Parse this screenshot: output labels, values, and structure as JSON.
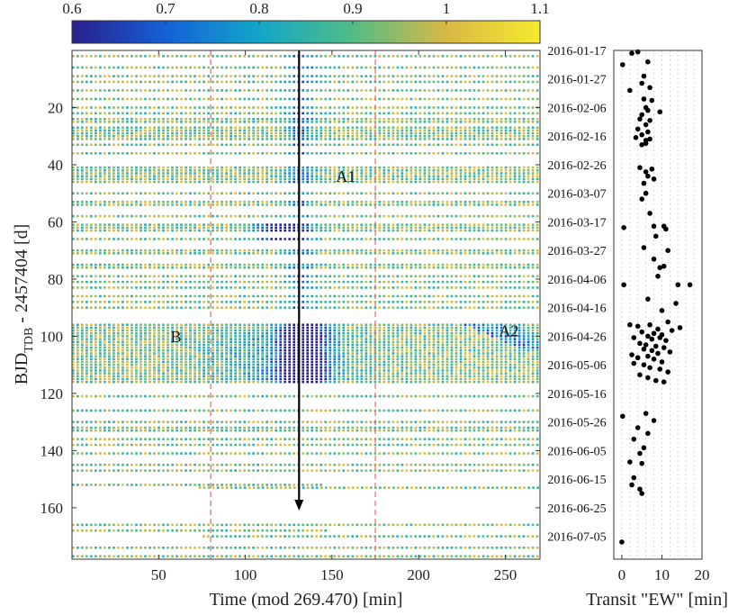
{
  "chart_data": [
    {
      "type": "heatmap",
      "xlabel": "Time (mod 269.470) [min]",
      "ylabel_main": "BJD",
      "ylabel_sub": "TDB",
      "ylabel_rest": " - 2457404 [d]",
      "xlim": [
        0,
        270
      ],
      "ylim": [
        178,
        0
      ],
      "x_ticks": [
        50,
        100,
        150,
        200,
        250
      ],
      "y_ticks": [
        20,
        40,
        60,
        80,
        100,
        120,
        140,
        160
      ],
      "colorbar": {
        "ticks": [
          "0.6",
          "0.7",
          "0.8",
          "0.9",
          "1",
          "1.1"
        ],
        "range": [
          0.6,
          1.1
        ],
        "stops": [
          "#2a1f8a",
          "#1560d8",
          "#12a6c9",
          "#52bc86",
          "#d8b845",
          "#f6e930"
        ]
      },
      "period_markers_min": [
        80,
        175
      ],
      "arrow": {
        "x": 131,
        "y_from": 0,
        "y_to": 161
      },
      "annotations": [
        {
          "text": "A1",
          "x": 158,
          "y": 46
        },
        {
          "text": "B",
          "x": 60,
          "y": 102
        },
        {
          "text": "A2",
          "x": 252,
          "y": 100
        }
      ],
      "date_labels": [
        "2016-01-17",
        "2016-01-27",
        "2016-02-06",
        "2016-02-16",
        "2016-02-26",
        "2016-03-07",
        "2016-03-17",
        "2016-03-27",
        "2016-04-06",
        "2016-04-16",
        "2016-04-26",
        "2016-05-06",
        "2016-05-16",
        "2016-05-26",
        "2016-06-05",
        "2016-06-15",
        "2016-06-25",
        "2016-07-05"
      ],
      "date_days": [
        0,
        10,
        20,
        30,
        40,
        50,
        60,
        70,
        80,
        90,
        100,
        110,
        120,
        130,
        140,
        150,
        160,
        170
      ],
      "observation_days": [
        2,
        6,
        9,
        11,
        14,
        17,
        20,
        22,
        24,
        25,
        27,
        28,
        29,
        30,
        31,
        33,
        36,
        41,
        42,
        43,
        44,
        45,
        46,
        50,
        53,
        54,
        58,
        61,
        62,
        63,
        66,
        70,
        71,
        75,
        76,
        79,
        81,
        83,
        86,
        88,
        90,
        96,
        97,
        98,
        99,
        100,
        101,
        102,
        103,
        104,
        105,
        106,
        107,
        108,
        109,
        110,
        111,
        112,
        113,
        114,
        115,
        116,
        121,
        126,
        130,
        132,
        133,
        136,
        138,
        141,
        145,
        147,
        152,
        153,
        166,
        168,
        170,
        174,
        177
      ],
      "dips": [
        {
          "x_center": 131,
          "half_width": 8,
          "y_from": 0,
          "y_to": 120,
          "depth": 0.22
        },
        {
          "x_center": 118,
          "half_width": 12,
          "y_from": 60,
          "y_to": 66,
          "depth": 0.35
        },
        {
          "x_center": 133,
          "half_width": 14,
          "y_from": 96,
          "y_to": 116,
          "depth": 0.35
        },
        {
          "x_center": 120,
          "half_width": 40,
          "y_from": 98,
          "y_to": 115,
          "depth": 0.12
        }
      ]
    },
    {
      "type": "scatter",
      "xlabel": "Transit \"EW\" [min]",
      "xlim": [
        -2,
        20
      ],
      "x_ticks": [
        0,
        10,
        20
      ],
      "points": [
        [
          2.5,
          1.0
        ],
        [
          4.0,
          0.5
        ],
        [
          0.2,
          5.0
        ],
        [
          6.5,
          4.0
        ],
        [
          5.5,
          9.0
        ],
        [
          5.0,
          11.5
        ],
        [
          7.0,
          13.0
        ],
        [
          2.0,
          14.0
        ],
        [
          5.5,
          17.0
        ],
        [
          7.5,
          17.5
        ],
        [
          6.0,
          20.0
        ],
        [
          6.5,
          21.0
        ],
        [
          9.5,
          21.5
        ],
        [
          5.0,
          22.5
        ],
        [
          4.5,
          24.0
        ],
        [
          7.0,
          24.5
        ],
        [
          6.0,
          26.0
        ],
        [
          4.0,
          27.5
        ],
        [
          5.0,
          29.5
        ],
        [
          6.5,
          28.5
        ],
        [
          3.5,
          30.5
        ],
        [
          6.0,
          31.5
        ],
        [
          7.0,
          31.0
        ],
        [
          5.0,
          33.0
        ],
        [
          6.0,
          32.5
        ],
        [
          4.5,
          41.0
        ],
        [
          6.0,
          42.5
        ],
        [
          7.5,
          41.5
        ],
        [
          8.0,
          45.0
        ],
        [
          5.5,
          46.5
        ],
        [
          6.5,
          44.0
        ],
        [
          6.0,
          50.0
        ],
        [
          5.0,
          52.0
        ],
        [
          7.0,
          57.0
        ],
        [
          0.5,
          62.0
        ],
        [
          8.0,
          61.5
        ],
        [
          10.5,
          61.5
        ],
        [
          11.0,
          62.5
        ],
        [
          8.5,
          65.0
        ],
        [
          5.5,
          69.0
        ],
        [
          8.0,
          73.0
        ],
        [
          11.5,
          70.0
        ],
        [
          9.5,
          76.0
        ],
        [
          10.5,
          75.5
        ],
        [
          9.0,
          79.0
        ],
        [
          0.5,
          82.0
        ],
        [
          14.0,
          82.0
        ],
        [
          17.0,
          82.0
        ],
        [
          6.5,
          87.0
        ],
        [
          13.5,
          88.5
        ],
        [
          10.0,
          91.0
        ],
        [
          2.0,
          96.0
        ],
        [
          4.0,
          96.5
        ],
        [
          7.0,
          96.0
        ],
        [
          9.0,
          97.5
        ],
        [
          11.5,
          95.0
        ],
        [
          5.0,
          98.5
        ],
        [
          8.0,
          99.0
        ],
        [
          10.0,
          99.5
        ],
        [
          12.5,
          98.0
        ],
        [
          3.0,
          100.5
        ],
        [
          6.5,
          100.0
        ],
        [
          7.5,
          101.0
        ],
        [
          9.5,
          100.5
        ],
        [
          11.0,
          101.5
        ],
        [
          14.5,
          97.0
        ],
        [
          4.5,
          102.5
        ],
        [
          6.0,
          103.0
        ],
        [
          8.5,
          103.5
        ],
        [
          10.5,
          104.0
        ],
        [
          5.5,
          104.5
        ],
        [
          7.5,
          105.0
        ],
        [
          9.0,
          106.0
        ],
        [
          12.0,
          105.5
        ],
        [
          2.5,
          106.5
        ],
        [
          4.0,
          107.5
        ],
        [
          6.5,
          107.0
        ],
        [
          8.0,
          108.0
        ],
        [
          10.0,
          109.0
        ],
        [
          3.0,
          109.5
        ],
        [
          5.5,
          110.0
        ],
        [
          7.0,
          111.0
        ],
        [
          9.5,
          111.5
        ],
        [
          11.5,
          112.5
        ],
        [
          4.5,
          113.5
        ],
        [
          6.5,
          114.5
        ],
        [
          8.5,
          115.5
        ],
        [
          10.5,
          116.0
        ],
        [
          0.2,
          128.0
        ],
        [
          6.0,
          127.0
        ],
        [
          4.0,
          132.0
        ],
        [
          8.0,
          129.5
        ],
        [
          6.5,
          134.0
        ],
        [
          3.0,
          136.0
        ],
        [
          5.5,
          139.0
        ],
        [
          4.5,
          141.0
        ],
        [
          2.0,
          144.0
        ],
        [
          5.0,
          144.5
        ],
        [
          3.0,
          149.5
        ],
        [
          2.5,
          152.0
        ],
        [
          4.5,
          153.5
        ],
        [
          5.0,
          155.0
        ],
        [
          0.0,
          172.0
        ]
      ]
    }
  ]
}
